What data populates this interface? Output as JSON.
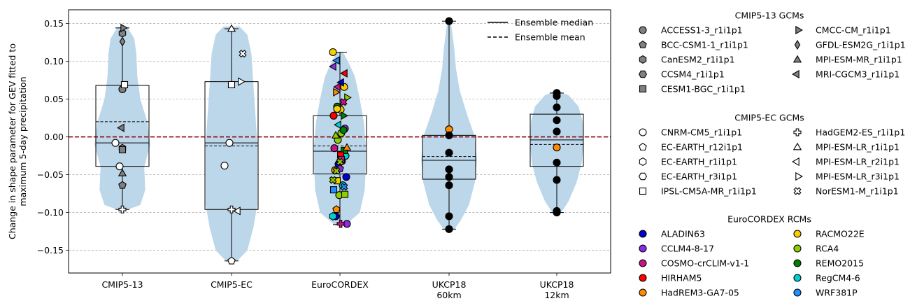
{
  "chart_data": {
    "type": "violin",
    "ylabel": "Change in shape parameter for GEV fitted to\nmaximum 5-day precipitation",
    "ylim": [
      -0.18,
      0.168
    ],
    "yticks": [
      -0.15,
      -0.1,
      -0.05,
      0.0,
      0.05,
      0.1,
      0.15
    ],
    "ytick_labels": [
      "−0.15",
      "−0.10",
      "−0.05",
      "0.00",
      "0.05",
      "0.10",
      "0.15"
    ],
    "grid": "horizontal dashed",
    "reference_line": {
      "y": 0,
      "color": "#8b0000",
      "style": "dashed"
    },
    "violin_color": "#bcd6ea",
    "categories": [
      "CMIP5-13",
      "CMIP5-EC",
      "EuroCORDEX",
      "UKCP18\n60km",
      "UKCP18\n12km"
    ],
    "groups": [
      {
        "label": "CMIP5-13",
        "box": {
          "q1": -0.039,
          "median": -0.008,
          "q3": 0.068,
          "mean": 0.02,
          "whisker_low": -0.096,
          "whisker_high": 0.144
        },
        "violin": [
          [
            -0.097,
            0.004
          ],
          [
            -0.09,
            0.018
          ],
          [
            -0.07,
            0.023
          ],
          [
            -0.04,
            0.022
          ],
          [
            -0.01,
            0.028
          ],
          [
            0.02,
            0.025
          ],
          [
            0.05,
            0.018
          ],
          [
            0.08,
            0.015
          ],
          [
            0.11,
            0.014
          ],
          [
            0.13,
            0.012
          ],
          [
            0.145,
            0.005
          ]
        ],
        "points": [
          {
            "y": 0.063,
            "marker": "circle",
            "color": "#808080"
          },
          {
            "y": -0.008,
            "marker": "circle",
            "color": "#ffffff"
          },
          {
            "y": -0.039,
            "marker": "circle",
            "color": "#ffffff"
          },
          {
            "y": -0.064,
            "marker": "pentagon",
            "color": "#808080"
          },
          {
            "y": 0.137,
            "marker": "hexagon",
            "color": "#808080"
          },
          {
            "y": -0.015,
            "marker": "hexagon",
            "color": "#808080"
          },
          {
            "y": -0.017,
            "marker": "square",
            "color": "#808080"
          },
          {
            "y": 0.069,
            "marker": "square",
            "color": "#ffffff"
          },
          {
            "y": 0.144,
            "marker": "tri_right",
            "color": "#808080"
          },
          {
            "y": 0.126,
            "marker": "diamond",
            "color": "#808080"
          },
          {
            "y": -0.048,
            "marker": "tri_up",
            "color": "#808080"
          },
          {
            "y": 0.012,
            "marker": "tri_left",
            "color": "#808080"
          },
          {
            "y": -0.096,
            "marker": "plus",
            "color": "#ffffff"
          }
        ]
      },
      {
        "label": "CMIP5-EC",
        "box": {
          "q1": -0.096,
          "median": -0.008,
          "q3": 0.073,
          "mean": -0.012,
          "whisker_low": -0.164,
          "whisker_high": 0.143
        },
        "violin": [
          [
            -0.165,
            0.005
          ],
          [
            -0.15,
            0.016
          ],
          [
            -0.12,
            0.022
          ],
          [
            -0.09,
            0.026
          ],
          [
            -0.05,
            0.026
          ],
          [
            -0.01,
            0.026
          ],
          [
            0.03,
            0.024
          ],
          [
            0.07,
            0.022
          ],
          [
            0.11,
            0.02
          ],
          [
            0.135,
            0.016
          ],
          [
            0.146,
            0.008
          ]
        ],
        "points": [
          {
            "y": -0.008,
            "marker": "circle",
            "color": "#ffffff"
          },
          {
            "y": -0.038,
            "marker": "circle",
            "color": "#ffffff"
          },
          {
            "y": -0.164,
            "marker": "pentagon",
            "color": "#ffffff"
          },
          {
            "y": 0.069,
            "marker": "square",
            "color": "#ffffff"
          },
          {
            "y": 0.143,
            "marker": "tri_up",
            "color": "#ffffff"
          },
          {
            "y": 0.073,
            "marker": "tri_right",
            "color": "#ffffff"
          },
          {
            "y": -0.098,
            "marker": "tri_left",
            "color": "#ffffff"
          },
          {
            "y": -0.096,
            "marker": "plus",
            "color": "#ffffff"
          },
          {
            "y": 0.11,
            "marker": "cross",
            "color": "#ffffff"
          }
        ]
      },
      {
        "label": "EuroCORDEX",
        "box": {
          "q1": -0.049,
          "median": -0.019,
          "q3": 0.028,
          "mean": -0.012,
          "whisker_low": -0.116,
          "whisker_high": 0.112
        },
        "violin": [
          [
            -0.117,
            0.005
          ],
          [
            -0.1,
            0.02
          ],
          [
            -0.07,
            0.025
          ],
          [
            -0.04,
            0.026
          ],
          [
            -0.01,
            0.026
          ],
          [
            0.02,
            0.024
          ],
          [
            0.05,
            0.02
          ],
          [
            0.08,
            0.015
          ],
          [
            0.1,
            0.008
          ],
          [
            0.112,
            0.003
          ]
        ],
        "points": [
          {
            "y": 0.112,
            "marker": "circle",
            "color": "#f5d000"
          },
          {
            "y": 0.066,
            "marker": "circle",
            "color": "#f5d000"
          },
          {
            "y": 0.036,
            "marker": "circle",
            "color": "#f5d000"
          },
          {
            "y": 0.04,
            "marker": "circle",
            "color": "#008000"
          },
          {
            "y": 0.028,
            "marker": "circle",
            "color": "#ff0000"
          },
          {
            "y": 0.011,
            "marker": "circle",
            "color": "#8b2be2"
          },
          {
            "y": 0.005,
            "marker": "circle",
            "color": "#8fce00"
          },
          {
            "y": -0.004,
            "marker": "circle",
            "color": "#8fce00"
          },
          {
            "y": -0.015,
            "marker": "circle",
            "color": "#c71585"
          },
          {
            "y": -0.025,
            "marker": "circle",
            "color": "#00ced1"
          },
          {
            "y": -0.032,
            "marker": "circle",
            "color": "#8fce00"
          },
          {
            "y": -0.036,
            "marker": "circle",
            "color": "#0000cd"
          },
          {
            "y": -0.044,
            "marker": "circle",
            "color": "#ff8c00"
          },
          {
            "y": -0.053,
            "marker": "circle",
            "color": "#0000cd"
          },
          {
            "y": -0.064,
            "marker": "circle",
            "color": "#00ced1"
          },
          {
            "y": -0.077,
            "marker": "circle",
            "color": "#8fce00"
          },
          {
            "y": -0.105,
            "marker": "circle",
            "color": "#0000cd"
          },
          {
            "y": -0.115,
            "marker": "circle",
            "color": "#8b2be2"
          },
          {
            "y": 0.009,
            "marker": "hexagon",
            "color": "#008000"
          },
          {
            "y": -0.042,
            "marker": "pentagon",
            "color": "#8b2be2"
          },
          {
            "y": -0.096,
            "marker": "pentagon",
            "color": "#ff8c00"
          },
          {
            "y": -0.105,
            "marker": "hexagon",
            "color": "#00ced1"
          },
          {
            "y": -0.018,
            "marker": "square",
            "color": "#008000"
          },
          {
            "y": -0.024,
            "marker": "square",
            "color": "#ff0000"
          },
          {
            "y": -0.058,
            "marker": "square",
            "color": "#f5d000"
          },
          {
            "y": -0.07,
            "marker": "square",
            "color": "#1e90ff"
          },
          {
            "y": -0.076,
            "marker": "square",
            "color": "#8fce00"
          },
          {
            "y": -0.03,
            "marker": "square",
            "color": "#c71585"
          },
          {
            "y": 0.101,
            "marker": "tri_left",
            "color": "#1e90ff"
          },
          {
            "y": 0.093,
            "marker": "tri_left",
            "color": "#8b2be2"
          },
          {
            "y": 0.084,
            "marker": "tri_left",
            "color": "#ff0000"
          },
          {
            "y": 0.072,
            "marker": "tri_left",
            "color": "#0000cd"
          },
          {
            "y": 0.066,
            "marker": "tri_left",
            "color": "#c71585"
          },
          {
            "y": 0.059,
            "marker": "tri_right",
            "color": "#ff8c00"
          },
          {
            "y": 0.052,
            "marker": "tri_right",
            "color": "#8fce00"
          },
          {
            "y": 0.028,
            "marker": "tri_right",
            "color": "#008000"
          },
          {
            "y": 0.016,
            "marker": "tri_left",
            "color": "#00ced1"
          },
          {
            "y": 0.002,
            "marker": "tri_up",
            "color": "#8fce00"
          },
          {
            "y": -0.014,
            "marker": "tri_up",
            "color": "#ff8c00"
          },
          {
            "y": 0.046,
            "marker": "cross",
            "color": "#c71585"
          },
          {
            "y": -0.033,
            "marker": "cross",
            "color": "#8fce00"
          },
          {
            "y": -0.045,
            "marker": "cross",
            "color": "#8fce00"
          },
          {
            "y": -0.057,
            "marker": "cross",
            "color": "#8fce00"
          },
          {
            "y": -0.066,
            "marker": "cross",
            "color": "#1e90ff"
          },
          {
            "y": -0.115,
            "marker": "plus",
            "color": "#c71585"
          },
          {
            "y": 0.037,
            "marker": "circle",
            "color": "#f5d000"
          }
        ]
      },
      {
        "label": "UKCP18\n60km",
        "box": {
          "q1": -0.056,
          "median": -0.031,
          "q3": 0.002,
          "mean": -0.026,
          "whisker_low": -0.122,
          "whisker_high": 0.153
        },
        "violin": [
          [
            -0.123,
            0.005
          ],
          [
            -0.11,
            0.012
          ],
          [
            -0.09,
            0.02
          ],
          [
            -0.06,
            0.026
          ],
          [
            -0.03,
            0.028
          ],
          [
            0.0,
            0.026
          ],
          [
            0.03,
            0.018
          ],
          [
            0.06,
            0.011
          ],
          [
            0.09,
            0.007
          ],
          [
            0.12,
            0.005
          ],
          [
            0.15,
            0.002
          ]
        ],
        "points": [
          {
            "y": 0.153,
            "marker": "circle",
            "color": "#000000"
          },
          {
            "y": 0.01,
            "marker": "circle",
            "color": "#ff8c00"
          },
          {
            "y": 0.002,
            "marker": "circle",
            "color": "#000000"
          },
          {
            "y": -0.021,
            "marker": "circle",
            "color": "#000000"
          },
          {
            "y": -0.043,
            "marker": "circle",
            "color": "#000000"
          },
          {
            "y": -0.053,
            "marker": "circle",
            "color": "#000000"
          },
          {
            "y": -0.064,
            "marker": "circle",
            "color": "#000000"
          },
          {
            "y": -0.105,
            "marker": "circle",
            "color": "#000000"
          },
          {
            "y": -0.122,
            "marker": "circle",
            "color": "#000000"
          }
        ]
      },
      {
        "label": "UKCP18\n12km",
        "box": {
          "q1": -0.039,
          "median": -0.004,
          "q3": 0.03,
          "mean": -0.01,
          "whisker_low": -0.1,
          "whisker_high": 0.058
        },
        "violin": [
          [
            -0.101,
            0.004
          ],
          [
            -0.085,
            0.012
          ],
          [
            -0.06,
            0.02
          ],
          [
            -0.035,
            0.025
          ],
          [
            -0.01,
            0.027
          ],
          [
            0.02,
            0.026
          ],
          [
            0.04,
            0.022
          ],
          [
            0.055,
            0.012
          ],
          [
            0.059,
            0.004
          ]
        ],
        "points": [
          {
            "y": 0.058,
            "marker": "circle",
            "color": "#000000"
          },
          {
            "y": 0.054,
            "marker": "circle",
            "color": "#000000"
          },
          {
            "y": 0.039,
            "marker": "circle",
            "color": "#000000"
          },
          {
            "y": 0.022,
            "marker": "circle",
            "color": "#000000"
          },
          {
            "y": 0.007,
            "marker": "circle",
            "color": "#000000"
          },
          {
            "y": -0.014,
            "marker": "circle",
            "color": "#ff8c00"
          },
          {
            "y": -0.034,
            "marker": "circle",
            "color": "#000000"
          },
          {
            "y": -0.057,
            "marker": "circle",
            "color": "#000000"
          },
          {
            "y": -0.098,
            "marker": "circle",
            "color": "#000000"
          },
          {
            "y": -0.1,
            "marker": "circle",
            "color": "#000000"
          }
        ]
      }
    ],
    "inner_legend": {
      "placement": "upper-right",
      "entries": [
        {
          "label": "Ensemble median",
          "style": "solid"
        },
        {
          "label": "Ensemble mean",
          "style": "dashed"
        }
      ]
    }
  },
  "legend": {
    "sections": [
      {
        "title": "CMIP5-13 GCMs",
        "columns": [
          [
            {
              "label": "ACCESS1-3_r1i1p1",
              "marker": "circle",
              "color": "#808080"
            },
            {
              "label": "BCC-CSM1-1_r1i1p1",
              "marker": "pentagon",
              "color": "#808080"
            },
            {
              "label": "CanESM2_r1i1p1",
              "marker": "hexagon",
              "color": "#808080"
            },
            {
              "label": "CCSM4_r1i1p1",
              "marker": "hexagon2",
              "color": "#808080"
            },
            {
              "label": "CESM1-BGC_r1i1p1",
              "marker": "square",
              "color": "#808080"
            }
          ],
          [
            {
              "label": "CMCC-CM_r1i1p1",
              "marker": "tri_right",
              "color": "#808080"
            },
            {
              "label": "GFDL-ESM2G_r1i1p1",
              "marker": "diamond",
              "color": "#808080"
            },
            {
              "label": "MPI-ESM-MR_r1i1p1",
              "marker": "tri_up",
              "color": "#808080"
            },
            {
              "label": "MRI-CGCM3_r1i1p1",
              "marker": "tri_left",
              "color": "#808080"
            }
          ]
        ]
      },
      {
        "title": "CMIP5-EC GCMs",
        "columns": [
          [
            {
              "label": "CNRM-CM5_r1i1p1",
              "marker": "circle",
              "color": "#ffffff"
            },
            {
              "label": "EC-EARTH_r12i1p1",
              "marker": "pentagon",
              "color": "#ffffff"
            },
            {
              "label": "EC-EARTH_r1i1p1",
              "marker": "hexagon",
              "color": "#ffffff"
            },
            {
              "label": "EC-EARTH_r3i1p1",
              "marker": "hexagon2",
              "color": "#ffffff"
            },
            {
              "label": "IPSL-CM5A-MR_r1i1p1",
              "marker": "square",
              "color": "#ffffff"
            }
          ],
          [
            {
              "label": "HadGEM2-ES_r1i1p1",
              "marker": "plus",
              "color": "#ffffff"
            },
            {
              "label": "MPI-ESM-LR_r1i1p1",
              "marker": "tri_up",
              "color": "#ffffff"
            },
            {
              "label": "MPI-ESM-LR_r2i1p1",
              "marker": "tri_left",
              "color": "#ffffff"
            },
            {
              "label": "MPI-ESM-LR_r3i1p1",
              "marker": "tri_right",
              "color": "#ffffff"
            },
            {
              "label": "NorESM1-M_r1i1p1",
              "marker": "cross",
              "color": "#ffffff"
            }
          ]
        ]
      },
      {
        "title": "EuroCORDEX RCMs",
        "columns": [
          [
            {
              "label": "ALADIN63",
              "marker": "circle",
              "color": "#0000cd"
            },
            {
              "label": "CCLM4-8-17",
              "marker": "circle",
              "color": "#8b2be2"
            },
            {
              "label": "COSMO-crCLIM-v1-1",
              "marker": "circle",
              "color": "#c71585"
            },
            {
              "label": "HIRHAM5",
              "marker": "circle",
              "color": "#ff0000"
            },
            {
              "label": "HadREM3-GA7-05",
              "marker": "circle",
              "color": "#ff8c00"
            }
          ],
          [
            {
              "label": "RACMO22E",
              "marker": "circle",
              "color": "#f5d000"
            },
            {
              "label": "RCA4",
              "marker": "circle",
              "color": "#8fce00"
            },
            {
              "label": "REMO2015",
              "marker": "circle",
              "color": "#008000"
            },
            {
              "label": "RegCM4-6",
              "marker": "circle",
              "color": "#00ced1"
            },
            {
              "label": "WRF381P",
              "marker": "circle",
              "color": "#1e90ff"
            }
          ]
        ]
      }
    ]
  }
}
